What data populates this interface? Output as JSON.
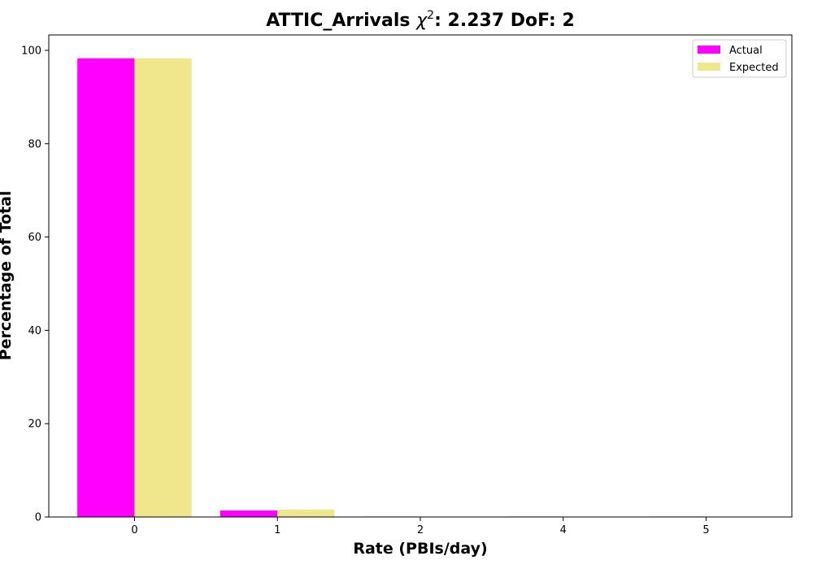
{
  "chart_data": {
    "type": "bar",
    "title_main": "ATTIC_Arrivals ",
    "title_chi": "χ",
    "title_sup": "2",
    "title_rest": ": 2.237 DoF: 2",
    "xlabel": "Rate (PBIs/day)",
    "ylabel": "Percentage of Total",
    "categories": [
      "0",
      "1",
      "2",
      "4",
      "5"
    ],
    "ylim": [
      0,
      103.3
    ],
    "yticks": [
      0,
      20,
      40,
      60,
      80,
      100
    ],
    "series": [
      {
        "name": "Actual",
        "color": "#ff00ff",
        "values": [
          98.3,
          1.4,
          0.1,
          0.1,
          0.1
        ]
      },
      {
        "name": "Expected",
        "color": "#f0e68c",
        "values": [
          98.3,
          1.6,
          0.0,
          0.0,
          0.0
        ]
      }
    ],
    "legend": {
      "placement": "top-right"
    },
    "grid": false
  }
}
